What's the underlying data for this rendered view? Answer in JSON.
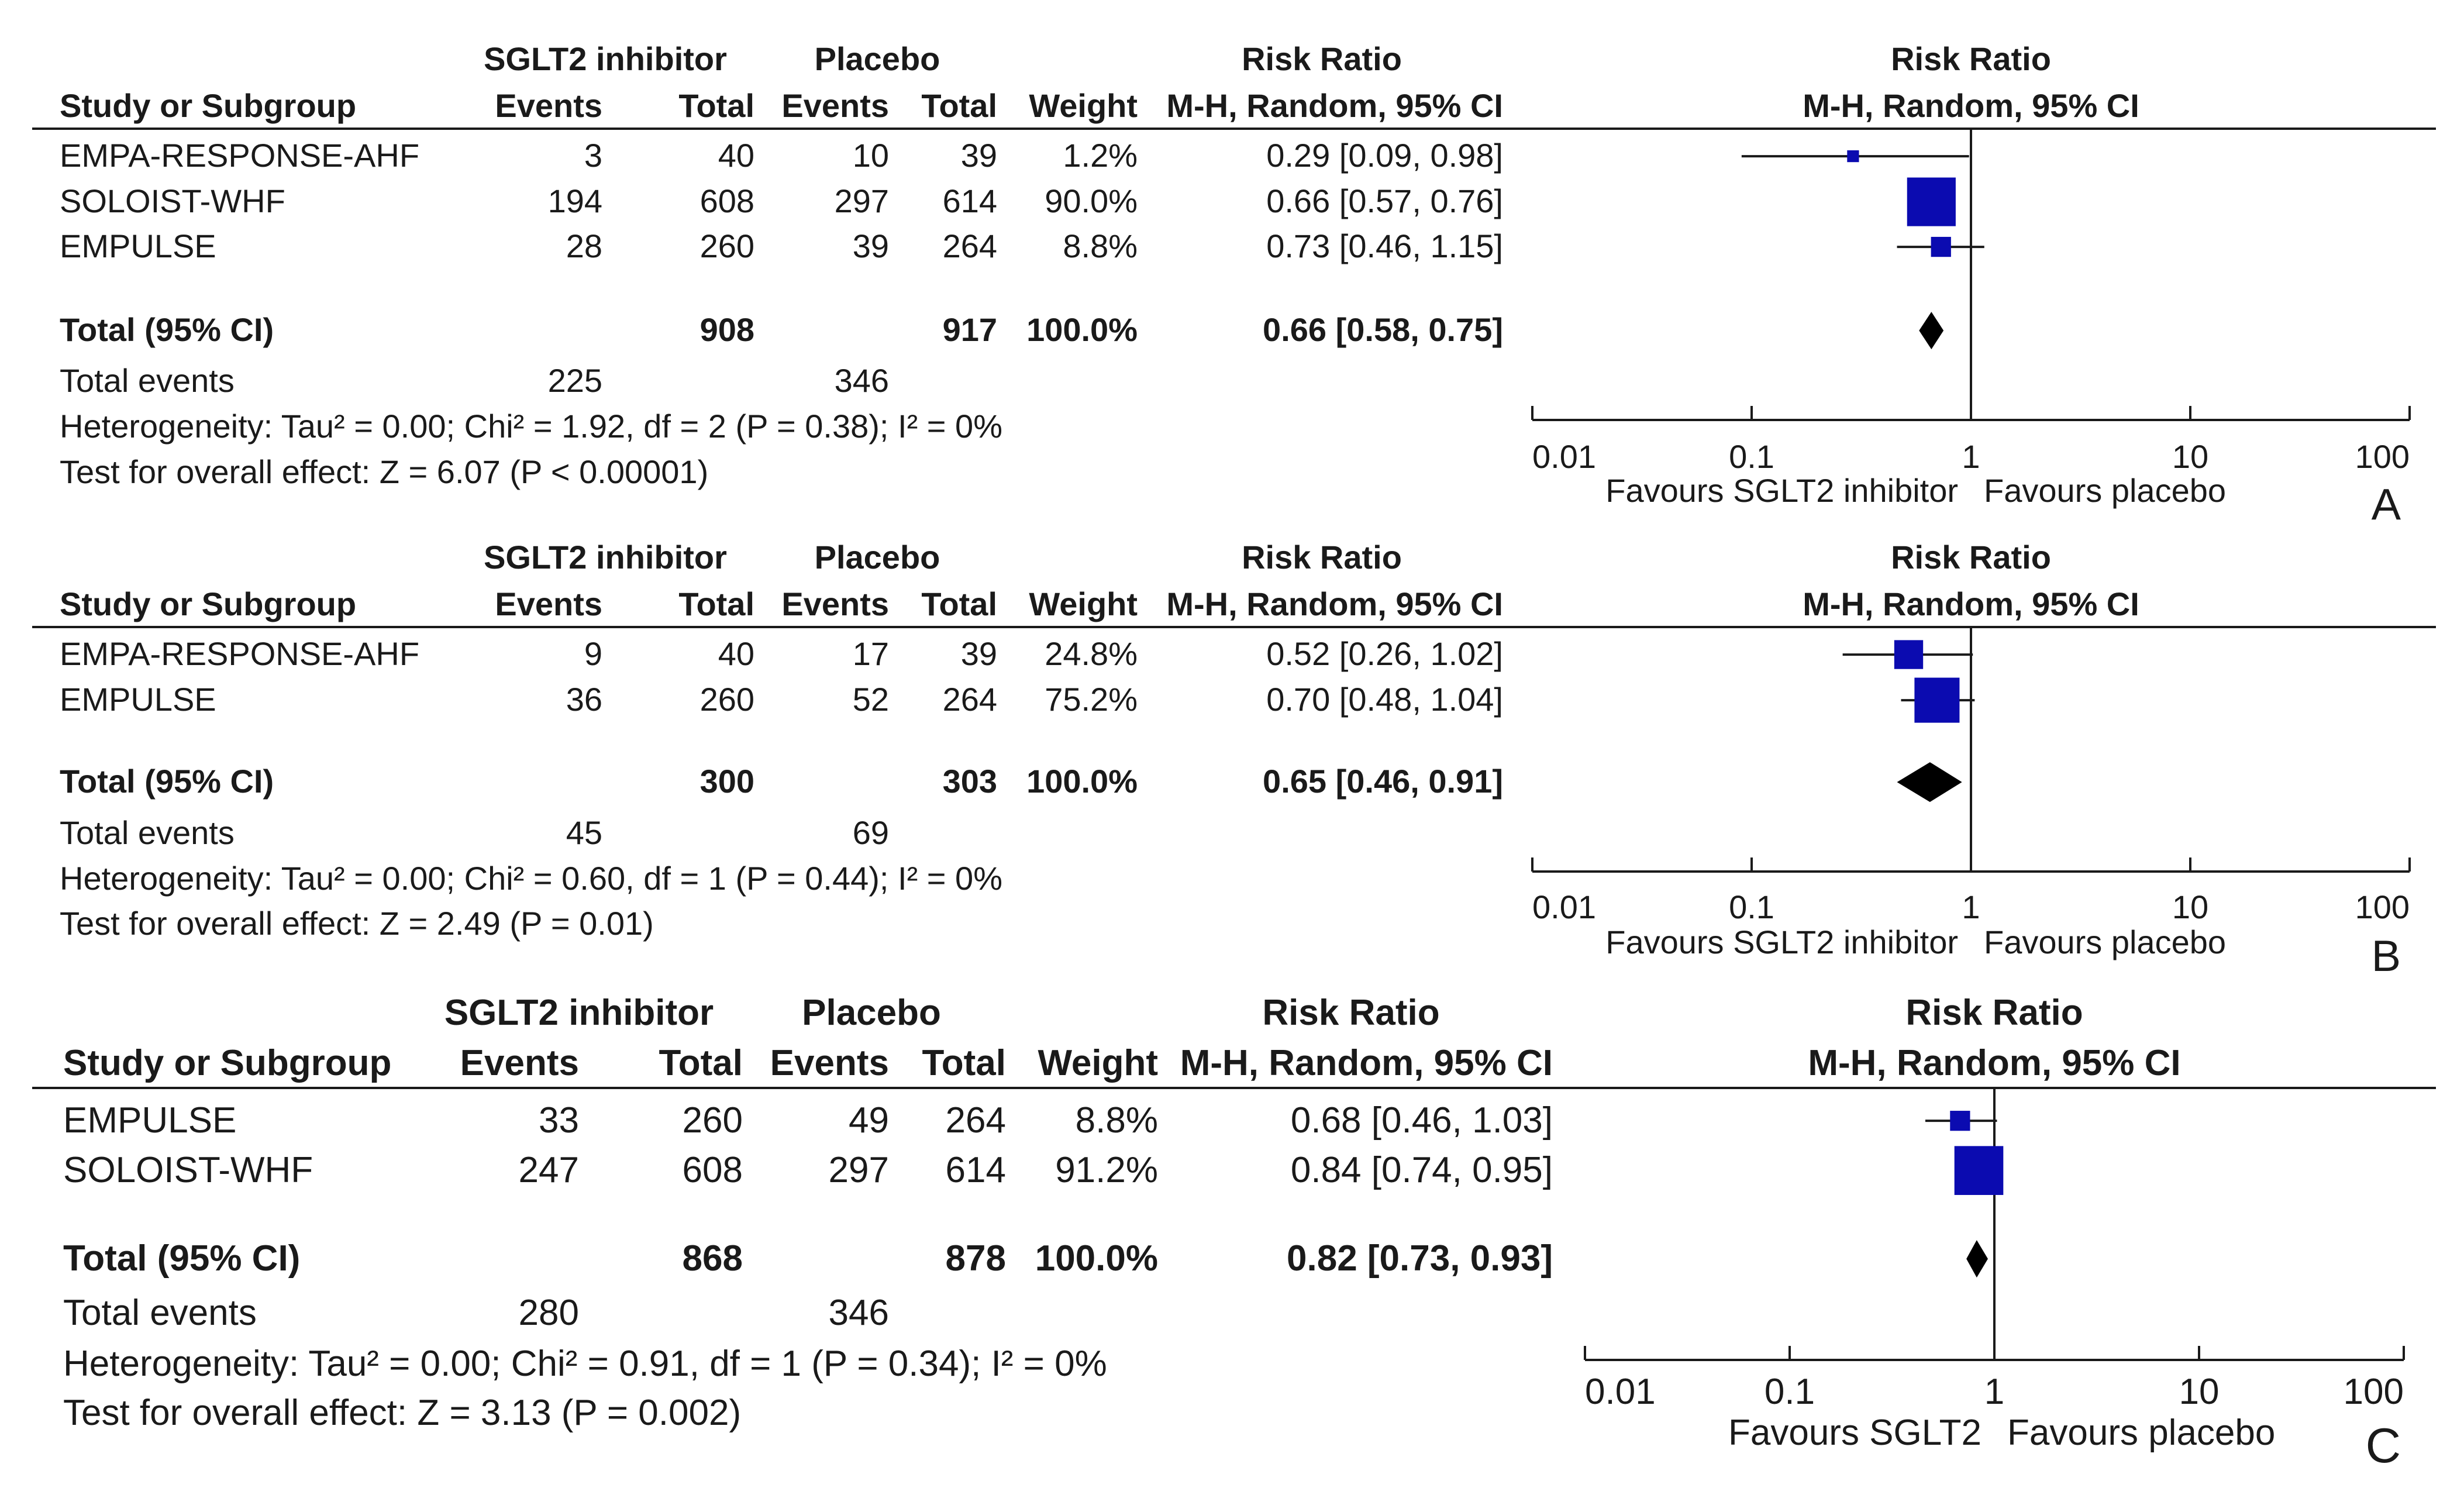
{
  "chart_data": [
    {
      "type": "forest",
      "panel_label": "A",
      "headers": {
        "group1": "SGLT2 inhibitor",
        "group2": "Placebo",
        "rr_col": "Risk Ratio",
        "rr_sub": "M-H, Random, 95% CI",
        "study": "Study or Subgroup",
        "events": "Events",
        "total": "Total",
        "weight": "Weight",
        "plot_title": "Risk Ratio",
        "plot_sub": "M-H, Random, 95% CI"
      },
      "studies": [
        {
          "name": "EMPA-RESPONSE-AHF",
          "e1": "3",
          "t1": "40",
          "e2": "10",
          "t2": "39",
          "weight": "1.2%",
          "ci_text": "0.29 [0.09, 0.98]",
          "rr": 0.29,
          "lo": 0.09,
          "hi": 0.98,
          "w": 1.2
        },
        {
          "name": "SOLOIST-WHF",
          "e1": "194",
          "t1": "608",
          "e2": "297",
          "t2": "614",
          "weight": "90.0%",
          "ci_text": "0.66 [0.57, 0.76]",
          "rr": 0.66,
          "lo": 0.57,
          "hi": 0.76,
          "w": 90.0
        },
        {
          "name": "EMPULSE",
          "e1": "28",
          "t1": "260",
          "e2": "39",
          "t2": "264",
          "weight": "8.8%",
          "ci_text": "0.73 [0.46, 1.15]",
          "rr": 0.73,
          "lo": 0.46,
          "hi": 1.15,
          "w": 8.8
        }
      ],
      "total": {
        "label": "Total (95% CI)",
        "t1": "908",
        "t2": "917",
        "weight": "100.0%",
        "ci_text": "0.66 [0.58, 0.75]",
        "rr": 0.66,
        "lo": 0.58,
        "hi": 0.75
      },
      "total_events": {
        "label": "Total events",
        "e1": "225",
        "e2": "346"
      },
      "heterogeneity": "Heterogeneity: Tau² = 0.00; Chi² = 1.92, df = 2 (P = 0.38); I² = 0%",
      "overall": "Test for overall effect: Z = 6.07 (P < 0.00001)",
      "axis": {
        "scale": "log",
        "min": 0.01,
        "max": 100,
        "ticks": [
          "0.01",
          "0.1",
          "1",
          "10",
          "100"
        ],
        "tick_values": [
          0.01,
          0.1,
          1,
          10,
          100
        ]
      },
      "favours_left": "Favours SGLT2 inhibitor",
      "favours_right": "Favours placebo"
    },
    {
      "type": "forest",
      "panel_label": "B",
      "headers": {
        "group1": "SGLT2 inhibitor",
        "group2": "Placebo",
        "rr_col": "Risk Ratio",
        "rr_sub": "M-H, Random, 95% CI",
        "study": "Study or Subgroup",
        "events": "Events",
        "total": "Total",
        "weight": "Weight",
        "plot_title": "Risk Ratio",
        "plot_sub": "M-H, Random, 95% CI"
      },
      "studies": [
        {
          "name": "EMPA-RESPONSE-AHF",
          "e1": "9",
          "t1": "40",
          "e2": "17",
          "t2": "39",
          "weight": "24.8%",
          "ci_text": "0.52 [0.26, 1.02]",
          "rr": 0.52,
          "lo": 0.26,
          "hi": 1.02,
          "w": 24.8
        },
        {
          "name": "EMPULSE",
          "e1": "36",
          "t1": "260",
          "e2": "52",
          "t2": "264",
          "weight": "75.2%",
          "ci_text": "0.70 [0.48, 1.04]",
          "rr": 0.7,
          "lo": 0.48,
          "hi": 1.04,
          "w": 75.2
        }
      ],
      "total": {
        "label": "Total (95% CI)",
        "t1": "300",
        "t2": "303",
        "weight": "100.0%",
        "ci_text": "0.65 [0.46, 0.91]",
        "rr": 0.65,
        "lo": 0.46,
        "hi": 0.91
      },
      "total_events": {
        "label": "Total events",
        "e1": "45",
        "e2": "69"
      },
      "heterogeneity": "Heterogeneity: Tau² = 0.00; Chi² = 0.60, df = 1 (P = 0.44); I² = 0%",
      "overall": "Test for overall effect: Z = 2.49 (P = 0.01)",
      "axis": {
        "scale": "log",
        "min": 0.01,
        "max": 100,
        "ticks": [
          "0.01",
          "0.1",
          "1",
          "10",
          "100"
        ],
        "tick_values": [
          0.01,
          0.1,
          1,
          10,
          100
        ]
      },
      "favours_left": "Favours SGLT2 inhibitor",
      "favours_right": "Favours placebo"
    },
    {
      "type": "forest",
      "panel_label": "C",
      "headers": {
        "group1": "SGLT2 inhibitor",
        "group2": "Placebo",
        "rr_col": "Risk Ratio",
        "rr_sub": "M-H, Random, 95% CI",
        "study": "Study or Subgroup",
        "events": "Events",
        "total": "Total",
        "weight": "Weight",
        "plot_title": "Risk Ratio",
        "plot_sub": "M-H, Random, 95% CI"
      },
      "studies": [
        {
          "name": "EMPULSE",
          "e1": "33",
          "t1": "260",
          "e2": "49",
          "t2": "264",
          "weight": "8.8%",
          "ci_text": "0.68 [0.46, 1.03]",
          "rr": 0.68,
          "lo": 0.46,
          "hi": 1.03,
          "w": 8.8
        },
        {
          "name": "SOLOIST-WHF",
          "e1": "247",
          "t1": "608",
          "e2": "297",
          "t2": "614",
          "weight": "91.2%",
          "ci_text": "0.84 [0.74, 0.95]",
          "rr": 0.84,
          "lo": 0.74,
          "hi": 0.95,
          "w": 91.2
        }
      ],
      "total": {
        "label": "Total (95% CI)",
        "t1": "868",
        "t2": "878",
        "weight": "100.0%",
        "ci_text": "0.82 [0.73, 0.93]",
        "rr": 0.82,
        "lo": 0.73,
        "hi": 0.93
      },
      "total_events": {
        "label": "Total events",
        "e1": "280",
        "e2": "346"
      },
      "heterogeneity": "Heterogeneity: Tau² = 0.00; Chi² = 0.91, df = 1 (P = 0.34); I² = 0%",
      "overall": "Test for overall effect: Z = 3.13 (P = 0.002)",
      "axis": {
        "scale": "log",
        "min": 0.01,
        "max": 100,
        "ticks": [
          "0.01",
          "0.1",
          "1",
          "10",
          "100"
        ],
        "tick_values": [
          0.01,
          0.1,
          1,
          10,
          100
        ]
      },
      "favours_left": "Favours SGLT2",
      "favours_right": "Favours placebo"
    }
  ],
  "colors": {
    "square": "#0b0bb0",
    "ink": "#1a1a1a",
    "diamond": "#000000"
  }
}
